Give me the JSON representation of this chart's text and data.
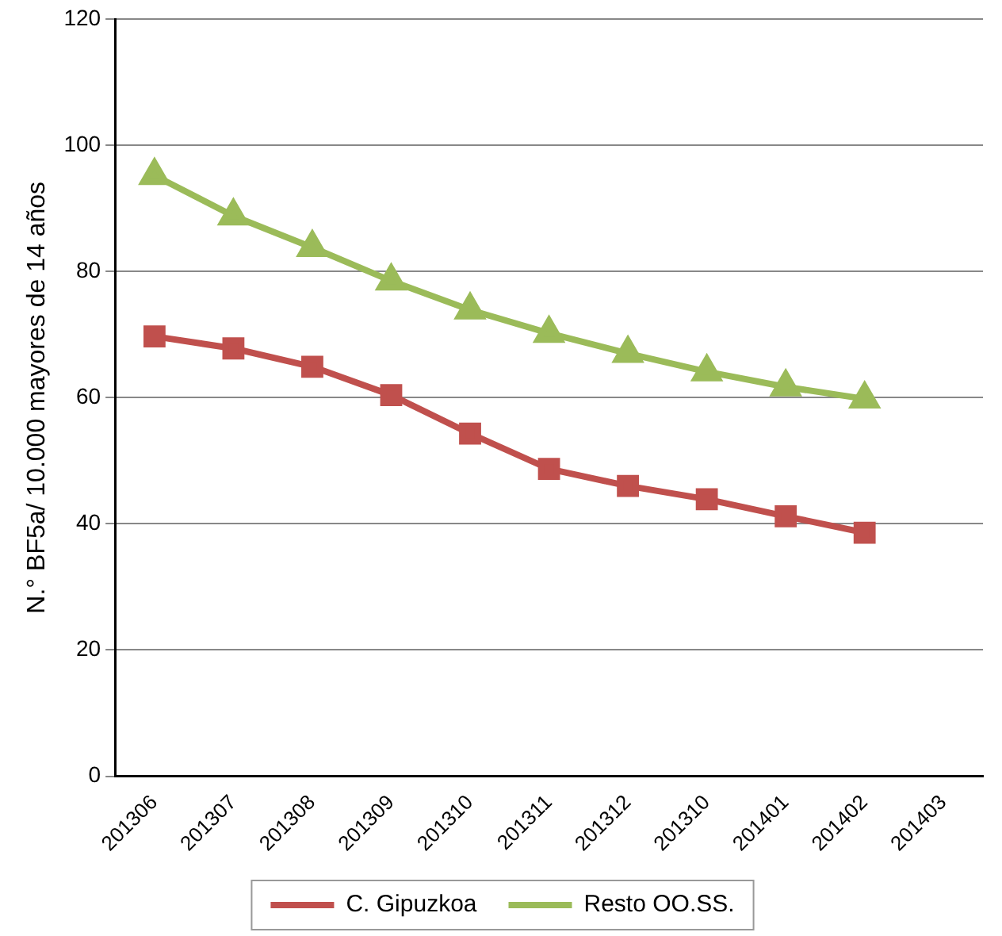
{
  "chart_data": {
    "type": "line",
    "ylabel": "N.° BF5a/ 10.000 mayores de 14 años",
    "categories": [
      "201306",
      "201307",
      "201308",
      "201309",
      "201310",
      "201311",
      "201312",
      "201310",
      "201401",
      "201402",
      "201403"
    ],
    "series": [
      {
        "name": "C. Gipuzkoa",
        "color": "#c0504d",
        "marker": "square",
        "values": [
          69.7,
          67.8,
          64.9,
          60.4,
          54.3,
          48.7,
          46.0,
          43.9,
          41.2,
          38.6,
          null
        ]
      },
      {
        "name": "Resto OO.SS.",
        "color": "#9bbb59",
        "marker": "triangle",
        "values": [
          95.2,
          88.8,
          83.8,
          78.5,
          73.9,
          70.2,
          67.0,
          64.1,
          61.7,
          59.8,
          null
        ]
      }
    ],
    "ylim": [
      0,
      120
    ],
    "yticks": [
      0,
      20,
      40,
      60,
      80,
      100,
      120
    ],
    "grid": "y",
    "legend": "bottom"
  }
}
